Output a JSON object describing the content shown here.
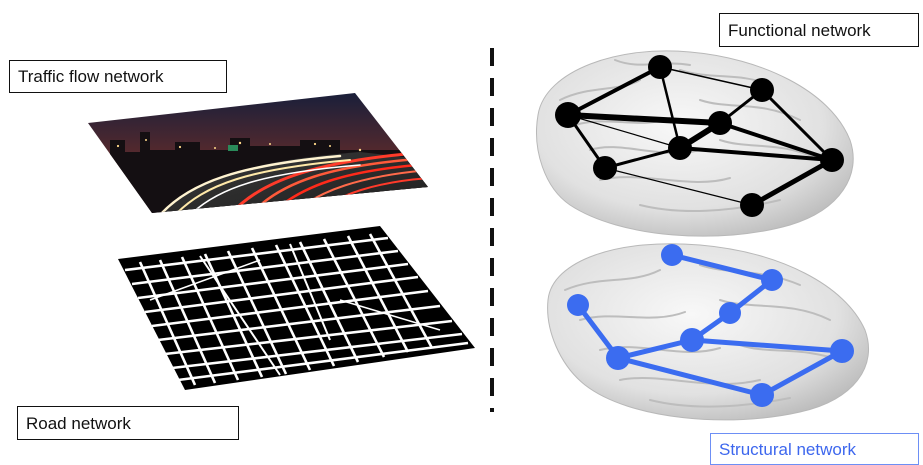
{
  "labels": {
    "traffic": "Traffic flow network",
    "road": "Road network",
    "functional": "Functional network",
    "structural": "Structural network"
  },
  "colors": {
    "functional_network": "#000000",
    "structural_network": "#3b6cf0",
    "brain": "#e9e9e9",
    "divider": "#111111"
  },
  "icons": {
    "traffic_image": "night-highway-light-trails-photo",
    "road_image": "city-road-map-binary",
    "brain_surface": "brain-cortex-render"
  }
}
